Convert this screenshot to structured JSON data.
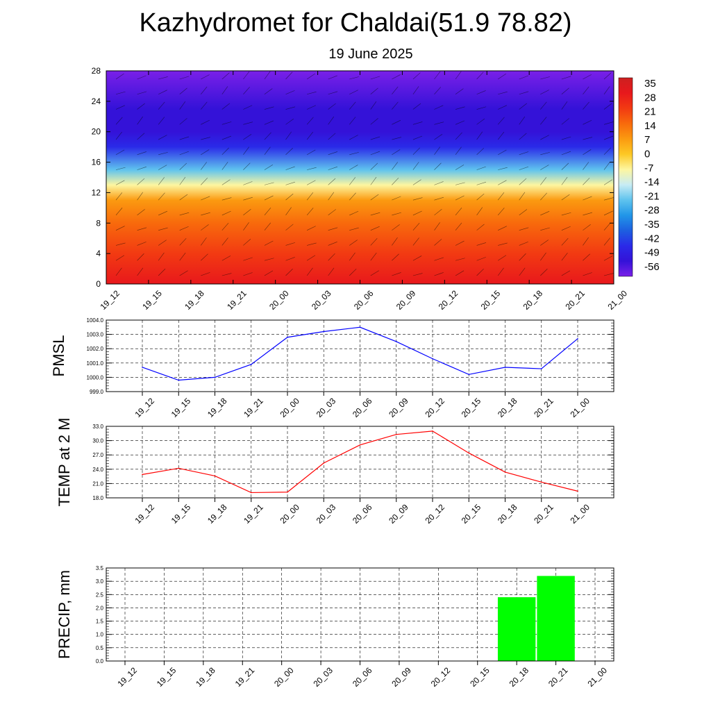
{
  "title": "Kazhydromet for Chaldai(51.9 78.82)",
  "subtitle": "19 June 2025",
  "colors": {
    "pmsl_line": "#0000ff",
    "temp_line": "#ff0000",
    "precip_bar": "#00ff00"
  },
  "chart_data": [
    {
      "type": "heatmap",
      "name": "vertical-profile",
      "x_ticks": [
        "19_12",
        "19_15",
        "19_18",
        "19_21",
        "20_00",
        "20_03",
        "20_06",
        "20_09",
        "20_12",
        "20_15",
        "20_18",
        "20_21",
        "21_00"
      ],
      "y_ticks": [
        "0",
        "4",
        "8",
        "12",
        "16",
        "20",
        "24",
        "28"
      ],
      "ylim": [
        0,
        28
      ],
      "colorbar_labels": [
        "35",
        "28",
        "21",
        "14",
        "7",
        "0",
        "-7",
        "-14",
        "-21",
        "-28",
        "-35",
        "-42",
        "-49",
        "-56"
      ],
      "colormap": [
        "#cc2020",
        "#e8181c",
        "#f23a12",
        "#f86a0c",
        "#fb9a10",
        "#fdc824",
        "#fdf6a0",
        "#c8ecf4",
        "#5fc3ee",
        "#2196e8",
        "#1d5fe0",
        "#2a2ae8",
        "#3412d8",
        "#7a20e8"
      ],
      "field_by_level": [
        {
          "y": 0,
          "temp_c": 30
        },
        {
          "y": 4,
          "temp_c": 26
        },
        {
          "y": 8,
          "temp_c": 14
        },
        {
          "y": 11,
          "temp_c": 5
        },
        {
          "y": 13,
          "temp_c": -7
        },
        {
          "y": 15,
          "temp_c": -28
        },
        {
          "y": 18,
          "temp_c": -45
        },
        {
          "y": 20,
          "temp_c": -58
        },
        {
          "y": 23,
          "temp_c": -52
        },
        {
          "y": 28,
          "temp_c": -60
        }
      ]
    },
    {
      "type": "line",
      "ylabel": "PMSL",
      "categories": [
        "19_12",
        "19_15",
        "19_18",
        "19_21",
        "20_00",
        "20_03",
        "20_06",
        "20_09",
        "20_12",
        "20_15",
        "20_18",
        "20_21",
        "21_00"
      ],
      "values": [
        1000.7,
        999.8,
        1000.0,
        1000.9,
        1002.8,
        1003.2,
        1003.5,
        1002.5,
        1001.3,
        1000.2,
        1000.7,
        1000.6,
        1002.7
      ],
      "ylim": [
        999.0,
        1004.0
      ],
      "y_ticks": [
        "999.0",
        "1000.0",
        "1001.0",
        "1002.0",
        "1003.0",
        "1004.0"
      ],
      "grid": true
    },
    {
      "type": "line",
      "ylabel": "TEMP at 2 M",
      "categories": [
        "19_12",
        "19_15",
        "19_18",
        "19_21",
        "20_00",
        "20_03",
        "20_06",
        "20_09",
        "20_12",
        "20_15",
        "20_18",
        "20_21",
        "21_00"
      ],
      "values": [
        22.9,
        24.2,
        22.6,
        19.1,
        19.2,
        25.3,
        29.1,
        31.3,
        32.0,
        27.4,
        23.4,
        21.3,
        19.4
      ],
      "ylim": [
        18.0,
        33.0
      ],
      "y_ticks": [
        "18.0",
        "21.0",
        "24.0",
        "27.0",
        "30.0",
        "33.0"
      ],
      "grid": true
    },
    {
      "type": "bar",
      "ylabel": "PRECIP, mm",
      "categories": [
        "19_12",
        "19_15",
        "19_18",
        "19_21",
        "20_00",
        "20_03",
        "20_06",
        "20_09",
        "20_12",
        "20_15",
        "20_18",
        "20_21",
        "21_00"
      ],
      "values": [
        0,
        0,
        0,
        0,
        0,
        0,
        0,
        0,
        0,
        0,
        2.4,
        3.2,
        0
      ],
      "ylim": [
        0.0,
        3.5
      ],
      "y_ticks": [
        "0.0",
        "0.5",
        "1.0",
        "1.5",
        "2.0",
        "2.5",
        "3.0",
        "3.5"
      ],
      "grid": true
    }
  ]
}
